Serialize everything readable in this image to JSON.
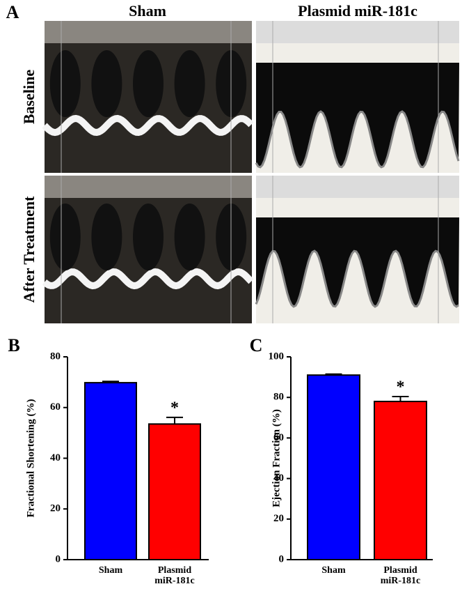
{
  "panel_a": {
    "label": "A",
    "columns": [
      "Sham",
      "Plasmid miR-181c"
    ],
    "rows": [
      "Baseline",
      "After Treatment"
    ]
  },
  "chart_data": [
    {
      "type": "bar",
      "panel": "B",
      "ylabel": "Fractional Shortening (%)",
      "categories": [
        "Sham",
        "Plasmid miR-181c"
      ],
      "values": [
        69.8,
        53.5
      ],
      "errors": [
        0.5,
        2.6
      ],
      "colors": [
        "#0000ff",
        "#ff0000"
      ],
      "annotations": [
        "*"
      ],
      "ylim": [
        0,
        80
      ],
      "yticks": [
        0,
        20,
        40,
        60,
        80
      ]
    },
    {
      "type": "bar",
      "panel": "C",
      "ylabel": "Ejection Fraction (%)",
      "categories": [
        "Sham",
        "Plasmid miR-181c"
      ],
      "values": [
        91,
        78
      ],
      "errors": [
        0.5,
        2.4
      ],
      "colors": [
        "#0000ff",
        "#ff0000"
      ],
      "annotations": [
        "*"
      ],
      "ylim": [
        0,
        100
      ],
      "yticks": [
        0,
        20,
        40,
        60,
        80,
        100
      ]
    }
  ]
}
